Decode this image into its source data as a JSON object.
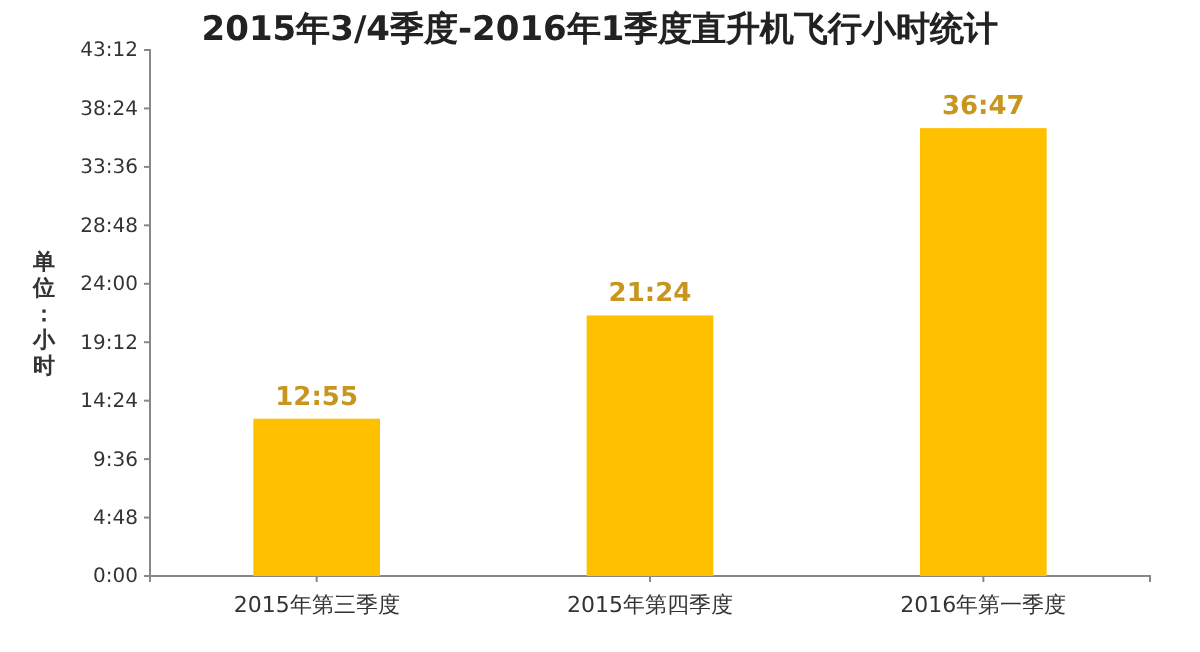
{
  "chart_data": {
    "type": "bar",
    "title": "2015年3/4季度-2016年1季度直升机飞行小时统计",
    "ylabel": "单位：小时",
    "categories": [
      "2015年第三季度",
      "2015年第四季度",
      "2016年第一季度"
    ],
    "values": [
      12.9167,
      21.4,
      36.7833
    ],
    "value_labels": [
      "12:55",
      "21:24",
      "36:47"
    ],
    "color": "#ffc000",
    "ylim": [
      0,
      43.2
    ],
    "yticks": [
      {
        "value": 0,
        "label": "0:00"
      },
      {
        "value": 4.8,
        "label": "4:48"
      },
      {
        "value": 9.6,
        "label": "9:36"
      },
      {
        "value": 14.4,
        "label": "14:24"
      },
      {
        "value": 19.2,
        "label": "19:12"
      },
      {
        "value": 24,
        "label": "24:00"
      },
      {
        "value": 28.8,
        "label": "28:48"
      },
      {
        "value": 33.6,
        "label": "33:36"
      },
      {
        "value": 38.4,
        "label": "38:24"
      },
      {
        "value": 43.2,
        "label": "43:12"
      }
    ],
    "grid": false
  }
}
